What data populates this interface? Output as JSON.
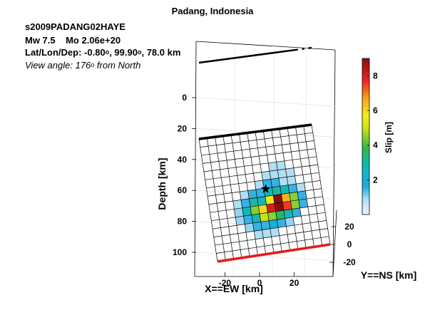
{
  "header": {
    "title": "Padang, Indonesia",
    "event_id": "s2009PADANG02HAYE",
    "mw": "Mw 7.5",
    "mo": "Mo 2.06e+20",
    "latlondep_prefix": "Lat/Lon/Dep: ",
    "lat": "-0.80",
    "lon": "99.90",
    "dep": "78.0 km",
    "degree_mark": "o",
    "view_prefix": "View angle: ",
    "view_angle": "176",
    "view_suffix": " from North"
  },
  "chart_data": {
    "type": "heatmap",
    "title": "Padang, Indonesia",
    "zlabel": "Depth [km]",
    "xlabel": "X==EW [km]",
    "ylabel": "Y==NS [km]",
    "colorbar_label": "Slip [m]",
    "z_ticks": [
      0,
      20,
      40,
      60,
      80,
      100
    ],
    "x_ticks": [
      -20,
      0,
      20
    ],
    "y_ticks": [
      20,
      0,
      -20
    ],
    "colorbar_ticks": [
      2,
      4,
      6,
      8
    ],
    "colorbar_range": [
      0,
      9
    ],
    "colormap": "jet",
    "grid": true,
    "fault_grid": {
      "along_strike_cells": 14,
      "down_dip_cells": 15
    },
    "slip_cells": [
      {
        "col": 8,
        "row": 4,
        "slip": 0.8
      },
      {
        "col": 9,
        "row": 4,
        "slip": 0.8
      },
      {
        "col": 7,
        "row": 5,
        "slip": 0.8
      },
      {
        "col": 8,
        "row": 5,
        "slip": 0.8
      },
      {
        "col": 9,
        "row": 5,
        "slip": 0.8
      },
      {
        "col": 10,
        "row": 5,
        "slip": 0.8
      },
      {
        "col": 6,
        "row": 6,
        "slip": 0.8
      },
      {
        "col": 7,
        "row": 6,
        "slip": 1.5
      },
      {
        "col": 8,
        "row": 6,
        "slip": 1.5
      },
      {
        "col": 9,
        "row": 6,
        "slip": 0.8
      },
      {
        "col": 10,
        "row": 6,
        "slip": 0.8
      },
      {
        "col": 4,
        "row": 7,
        "slip": 0.8
      },
      {
        "col": 5,
        "row": 7,
        "slip": 1.5
      },
      {
        "col": 6,
        "row": 7,
        "slip": 1.5
      },
      {
        "col": 7,
        "row": 7,
        "slip": 2.5
      },
      {
        "col": 8,
        "row": 7,
        "slip": 3.0
      },
      {
        "col": 9,
        "row": 7,
        "slip": 2.8
      },
      {
        "col": 10,
        "row": 7,
        "slip": 1.5
      },
      {
        "col": 11,
        "row": 7,
        "slip": 0.8
      },
      {
        "col": 3,
        "row": 8,
        "slip": 0.8
      },
      {
        "col": 4,
        "row": 8,
        "slip": 1.5
      },
      {
        "col": 5,
        "row": 8,
        "slip": 3.0
      },
      {
        "col": 6,
        "row": 8,
        "slip": 2.8
      },
      {
        "col": 7,
        "row": 8,
        "slip": 5.5
      },
      {
        "col": 8,
        "row": 8,
        "slip": 9.0
      },
      {
        "col": 9,
        "row": 8,
        "slip": 6.5
      },
      {
        "col": 10,
        "row": 8,
        "slip": 4.5
      },
      {
        "col": 11,
        "row": 8,
        "slip": 1.5
      },
      {
        "col": 3,
        "row": 9,
        "slip": 1.0
      },
      {
        "col": 4,
        "row": 9,
        "slip": 2.8
      },
      {
        "col": 5,
        "row": 9,
        "slip": 4.5
      },
      {
        "col": 6,
        "row": 9,
        "slip": 6.0
      },
      {
        "col": 7,
        "row": 9,
        "slip": 8.0
      },
      {
        "col": 8,
        "row": 9,
        "slip": 9.0
      },
      {
        "col": 9,
        "row": 9,
        "slip": 7.5
      },
      {
        "col": 10,
        "row": 9,
        "slip": 4.5
      },
      {
        "col": 11,
        "row": 9,
        "slip": 1.5
      },
      {
        "col": 3,
        "row": 10,
        "slip": 1.0
      },
      {
        "col": 4,
        "row": 10,
        "slip": 1.5
      },
      {
        "col": 5,
        "row": 10,
        "slip": 2.8
      },
      {
        "col": 6,
        "row": 10,
        "slip": 5.0
      },
      {
        "col": 7,
        "row": 10,
        "slip": 4.5
      },
      {
        "col": 8,
        "row": 10,
        "slip": 3.5
      },
      {
        "col": 9,
        "row": 10,
        "slip": 2.8
      },
      {
        "col": 10,
        "row": 10,
        "slip": 1.5
      },
      {
        "col": 4,
        "row": 11,
        "slip": 1.0
      },
      {
        "col": 5,
        "row": 11,
        "slip": 1.5
      },
      {
        "col": 6,
        "row": 11,
        "slip": 1.5
      },
      {
        "col": 7,
        "row": 11,
        "slip": 2.0
      },
      {
        "col": 8,
        "row": 11,
        "slip": 1.5
      },
      {
        "col": 9,
        "row": 11,
        "slip": 1.0
      },
      {
        "col": 5,
        "row": 12,
        "slip": 0.8
      },
      {
        "col": 6,
        "row": 12,
        "slip": 0.8
      },
      {
        "col": 7,
        "row": 12,
        "slip": 0.8
      }
    ],
    "hypocenter": {
      "col": 7.2,
      "row": 7.1
    }
  }
}
